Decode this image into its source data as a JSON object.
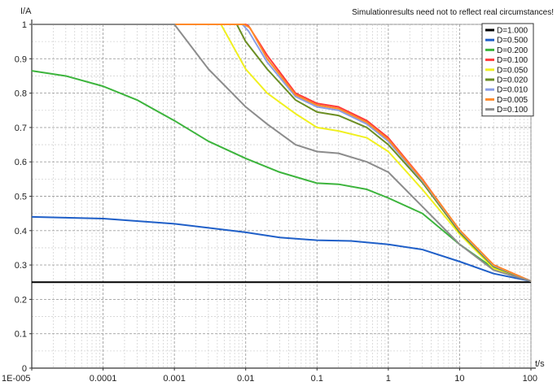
{
  "chart_data": {
    "type": "line",
    "ylabel": "I/A",
    "xlabel": "t/s",
    "annotation": "Simulationresults need not to reflect real circumstances!",
    "x_scale": "log",
    "xlim": [
      1e-05,
      100
    ],
    "ylim": [
      0,
      1
    ],
    "x_ticks": [
      1e-05,
      0.0001,
      0.001,
      0.01,
      0.1,
      1,
      10,
      100
    ],
    "x_tick_labels": [
      "1E-005",
      "0.0001",
      "0.001",
      "0.01",
      "0.1",
      "1",
      "10",
      "100"
    ],
    "y_ticks": [
      0,
      0.1,
      0.2,
      0.3,
      0.4,
      0.5,
      0.6,
      0.7,
      0.8,
      0.9,
      1
    ],
    "y_tick_labels": [
      "0",
      "0.1",
      "0.2",
      "0.3",
      "0.4",
      "0.5",
      "0.6",
      "0.7",
      "0.8",
      "0.9",
      "1"
    ],
    "grid": true,
    "legend_position": "top-right",
    "series": [
      {
        "name": "D=1.000",
        "color": "#000000",
        "x": [
          1e-05,
          100
        ],
        "y": [
          0.25,
          0.25
        ]
      },
      {
        "name": "D=0.500",
        "color": "#1f5fc8",
        "x": [
          1e-05,
          0.0001,
          0.001,
          0.01,
          0.03,
          0.1,
          0.3,
          1,
          3,
          10,
          30,
          100
        ],
        "y": [
          0.44,
          0.435,
          0.42,
          0.395,
          0.38,
          0.372,
          0.37,
          0.36,
          0.345,
          0.31,
          0.275,
          0.253
        ]
      },
      {
        "name": "D=0.200",
        "color": "#3cb43c",
        "x": [
          1e-05,
          3e-05,
          0.0001,
          0.0003,
          0.001,
          0.003,
          0.01,
          0.03,
          0.1,
          0.2,
          0.5,
          1,
          3,
          10,
          30,
          100
        ],
        "y": [
          0.865,
          0.85,
          0.82,
          0.78,
          0.72,
          0.66,
          0.61,
          0.57,
          0.538,
          0.535,
          0.52,
          0.495,
          0.45,
          0.36,
          0.29,
          0.253
        ]
      },
      {
        "name": "D=0.100",
        "color": "#ff3b3b",
        "x": [
          1e-05,
          0.01,
          0.011,
          0.02,
          0.05,
          0.1,
          0.2,
          0.5,
          1,
          3,
          10,
          30,
          100
        ],
        "y": [
          1.0,
          1.0,
          0.995,
          0.91,
          0.8,
          0.77,
          0.76,
          0.72,
          0.67,
          0.55,
          0.4,
          0.3,
          0.253
        ]
      },
      {
        "name": "D=0.050",
        "color": "#f0f020",
        "x": [
          1e-05,
          0.0045,
          0.01,
          0.02,
          0.05,
          0.1,
          0.2,
          0.5,
          1,
          3,
          10,
          30,
          100
        ],
        "y": [
          1.0,
          1.0,
          0.87,
          0.8,
          0.74,
          0.7,
          0.69,
          0.67,
          0.63,
          0.52,
          0.39,
          0.29,
          0.253
        ]
      },
      {
        "name": "D=0.020",
        "color": "#6b8e23",
        "x": [
          1e-05,
          0.0075,
          0.01,
          0.02,
          0.05,
          0.1,
          0.2,
          0.5,
          1,
          3,
          10,
          30,
          100
        ],
        "y": [
          1.0,
          1.0,
          0.95,
          0.87,
          0.78,
          0.745,
          0.735,
          0.7,
          0.65,
          0.54,
          0.395,
          0.295,
          0.253
        ]
      },
      {
        "name": "D=0.010",
        "color": "#8a9ee6",
        "x": [
          1e-05,
          0.009,
          0.011,
          0.02,
          0.05,
          0.1,
          0.2,
          0.5,
          1,
          3,
          10,
          30,
          100
        ],
        "y": [
          1.0,
          1.0,
          0.98,
          0.89,
          0.79,
          0.76,
          0.75,
          0.71,
          0.66,
          0.545,
          0.4,
          0.298,
          0.253
        ]
      },
      {
        "name": "D=0.005",
        "color": "#ff8a2a",
        "x": [
          1e-05,
          0.0095,
          0.0115,
          0.02,
          0.05,
          0.1,
          0.2,
          0.5,
          1,
          3,
          10,
          30,
          100
        ],
        "y": [
          1.0,
          1.0,
          0.99,
          0.9,
          0.795,
          0.765,
          0.755,
          0.715,
          0.665,
          0.548,
          0.402,
          0.3,
          0.253
        ]
      },
      {
        "name": "D=0.100",
        "color": "#8c8c8c",
        "x": [
          1e-05,
          0.001,
          0.003,
          0.01,
          0.02,
          0.05,
          0.1,
          0.2,
          0.5,
          1,
          3,
          10,
          30,
          100
        ],
        "y": [
          1.0,
          1.0,
          0.87,
          0.76,
          0.71,
          0.65,
          0.63,
          0.625,
          0.6,
          0.57,
          0.47,
          0.36,
          0.285,
          0.253
        ]
      }
    ]
  }
}
